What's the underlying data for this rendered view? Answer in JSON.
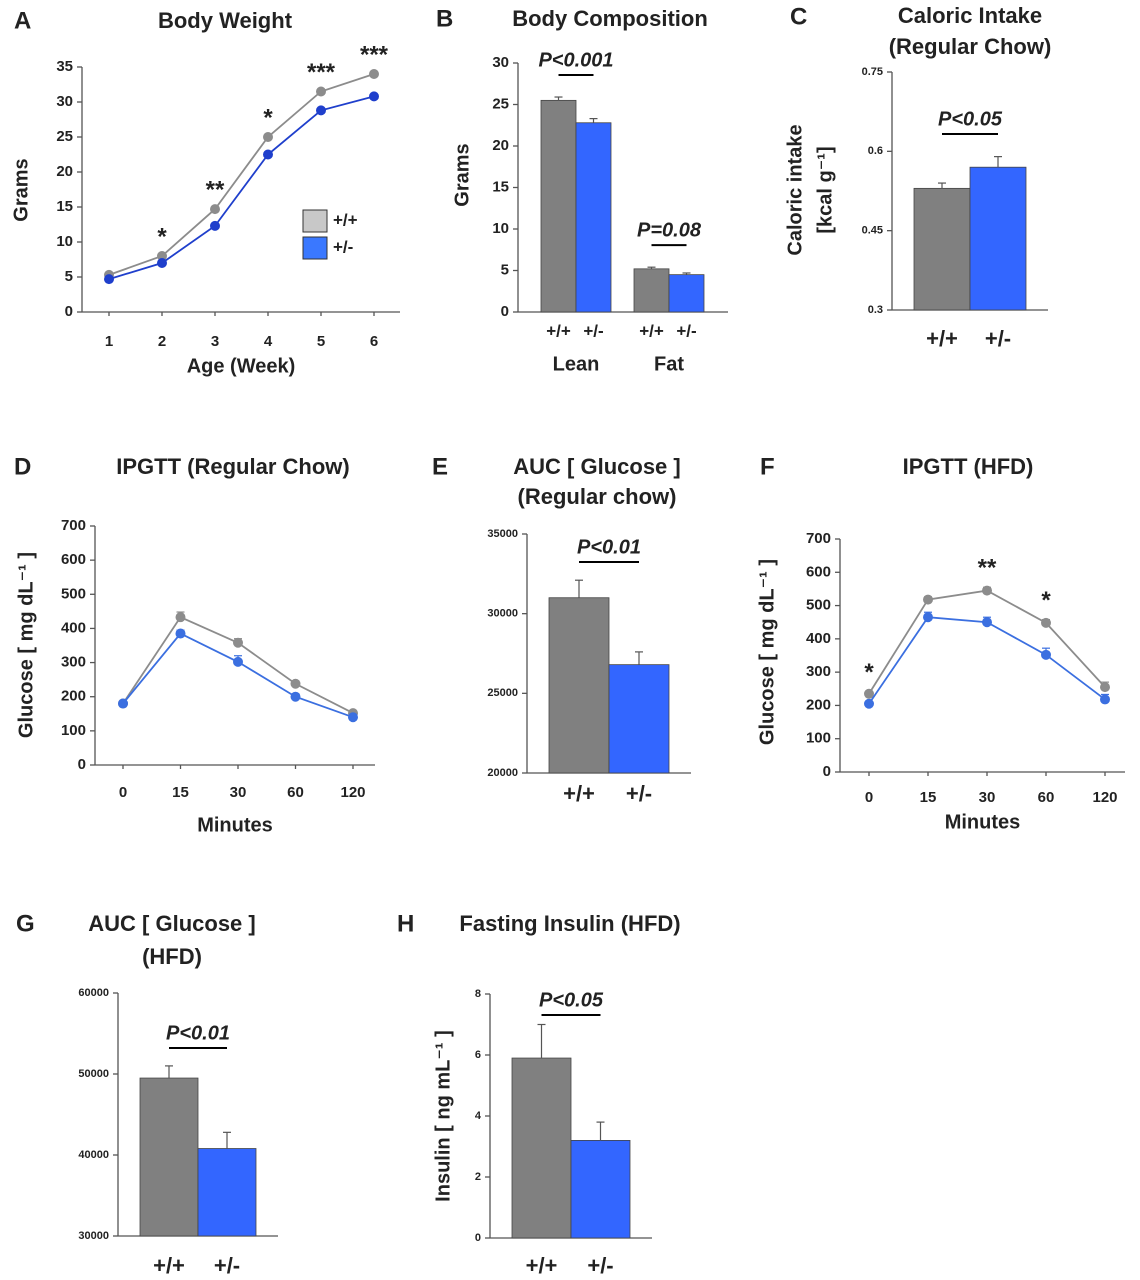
{
  "chart_data": [
    {
      "type": "line",
      "panel": "A",
      "title": "Body Weight",
      "ylabel": "Grams",
      "xlabel": "Age (Week)",
      "categories": [
        "1",
        "2",
        "3",
        "4",
        "5",
        "6"
      ],
      "series": [
        {
          "name": "+/+",
          "color": "#8c8c8c",
          "fill": "#c8c8c8",
          "values": [
            5.3,
            8,
            14.7,
            25,
            31.5,
            34
          ]
        },
        {
          "name": "+/-",
          "color": "#1f3fcc",
          "fill": "#3a78ff",
          "values": [
            4.7,
            7,
            12.3,
            22.5,
            28.8,
            30.8
          ]
        }
      ],
      "point_labels": [
        null,
        "*",
        "**",
        "*",
        "***",
        "***"
      ],
      "ylim": [
        0,
        35
      ],
      "yticks": [
        0,
        5,
        10,
        15,
        20,
        25,
        30,
        35
      ],
      "legend": "right"
    },
    {
      "type": "grouped_bar",
      "panel": "B",
      "title": "Body Composition",
      "ylabel": "Grams",
      "categories": [
        "Lean",
        "Fat"
      ],
      "series": [
        {
          "name": "+/+",
          "color": "#808080",
          "values": [
            25.5,
            5.2
          ],
          "errors": [
            0.4,
            0.2
          ]
        },
        {
          "name": "+/-",
          "color": "#3366ff",
          "values": [
            22.8,
            4.5
          ],
          "errors": [
            0.5,
            0.2
          ]
        }
      ],
      "group_labels": [
        "P<0.001",
        "P=0.08"
      ],
      "ylim": [
        0,
        30
      ],
      "yticks": [
        0,
        5,
        10,
        15,
        20,
        25,
        30
      ]
    },
    {
      "type": "bar",
      "panel": "C",
      "title": [
        "Caloric Intake",
        "(Regular Chow)"
      ],
      "ylabel": [
        "Caloric intake",
        "[kcal g⁻¹]"
      ],
      "categories": [
        "+/+",
        "+/-"
      ],
      "values": [
        0.53,
        0.57
      ],
      "errors": [
        0.01,
        0.02
      ],
      "colors": [
        "#808080",
        "#3366ff"
      ],
      "annotation": "P<0.05",
      "ylim": [
        0.3,
        0.75
      ],
      "yticks": [
        0.3,
        0.45,
        0.6,
        0.75
      ]
    },
    {
      "type": "line",
      "panel": "D",
      "title": "IPGTT (Regular Chow)",
      "ylabel": "Glucose [ mg dL⁻¹ ]",
      "xlabel": "Minutes",
      "categories": [
        "0",
        "15",
        "30",
        "60",
        "120"
      ],
      "series": [
        {
          "name": "+/+",
          "color": "#8c8c8c",
          "values": [
            180,
            433,
            358,
            238,
            152
          ],
          "errors": [
            5,
            15,
            12,
            8,
            6
          ]
        },
        {
          "name": "+/-",
          "color": "#3b6fe0",
          "values": [
            180,
            385,
            302,
            200,
            140
          ],
          "errors": [
            5,
            10,
            18,
            8,
            6
          ]
        }
      ],
      "ylim": [
        0,
        700
      ],
      "yticks": [
        0,
        100,
        200,
        300,
        400,
        500,
        600,
        700
      ]
    },
    {
      "type": "bar",
      "panel": "E",
      "title": [
        "AUC [ Glucose ]",
        "(Regular chow)"
      ],
      "categories": [
        "+/+",
        "+/-"
      ],
      "values": [
        31000,
        26800
      ],
      "errors": [
        1100,
        800
      ],
      "colors": [
        "#808080",
        "#3366ff"
      ],
      "annotation": "P<0.01",
      "ylim": [
        20000,
        35000
      ],
      "yticks": [
        20000,
        25000,
        30000,
        35000
      ]
    },
    {
      "type": "line",
      "panel": "F",
      "title": "IPGTT (HFD)",
      "ylabel": "Glucose [ mg dL⁻¹ ]",
      "xlabel": "Minutes",
      "categories": [
        "0",
        "15",
        "30",
        "60",
        "120"
      ],
      "series": [
        {
          "name": "+/+",
          "color": "#8c8c8c",
          "values": [
            235,
            518,
            545,
            448,
            255
          ],
          "errors": [
            6,
            8,
            10,
            10,
            15
          ]
        },
        {
          "name": "+/-",
          "color": "#3b6fe0",
          "values": [
            205,
            465,
            450,
            352,
            218
          ],
          "errors": [
            6,
            15,
            15,
            20,
            15
          ]
        }
      ],
      "point_labels": [
        "*",
        null,
        "**",
        "*",
        null
      ],
      "ylim": [
        0,
        700
      ],
      "yticks": [
        0,
        100,
        200,
        300,
        400,
        500,
        600,
        700
      ]
    },
    {
      "type": "bar",
      "panel": "G",
      "title": [
        "AUC [ Glucose ]",
        "(HFD)"
      ],
      "categories": [
        "+/+",
        "+/-"
      ],
      "values": [
        49500,
        40800
      ],
      "errors": [
        1500,
        2000
      ],
      "colors": [
        "#808080",
        "#3366ff"
      ],
      "annotation": "P<0.01",
      "ylim": [
        30000,
        60000
      ],
      "yticks": [
        30000,
        40000,
        50000,
        60000
      ]
    },
    {
      "type": "bar",
      "panel": "H",
      "title": "Fasting Insulin (HFD)",
      "ylabel": "Insulin [ ng mL⁻¹ ]",
      "categories": [
        "+/+",
        "+/-"
      ],
      "values": [
        5.9,
        3.2
      ],
      "errors": [
        1.1,
        0.6
      ],
      "colors": [
        "#808080",
        "#3366ff"
      ],
      "annotation": "P<0.05",
      "ylim": [
        0,
        8
      ],
      "yticks": [
        0,
        2,
        4,
        6,
        8
      ]
    }
  ]
}
